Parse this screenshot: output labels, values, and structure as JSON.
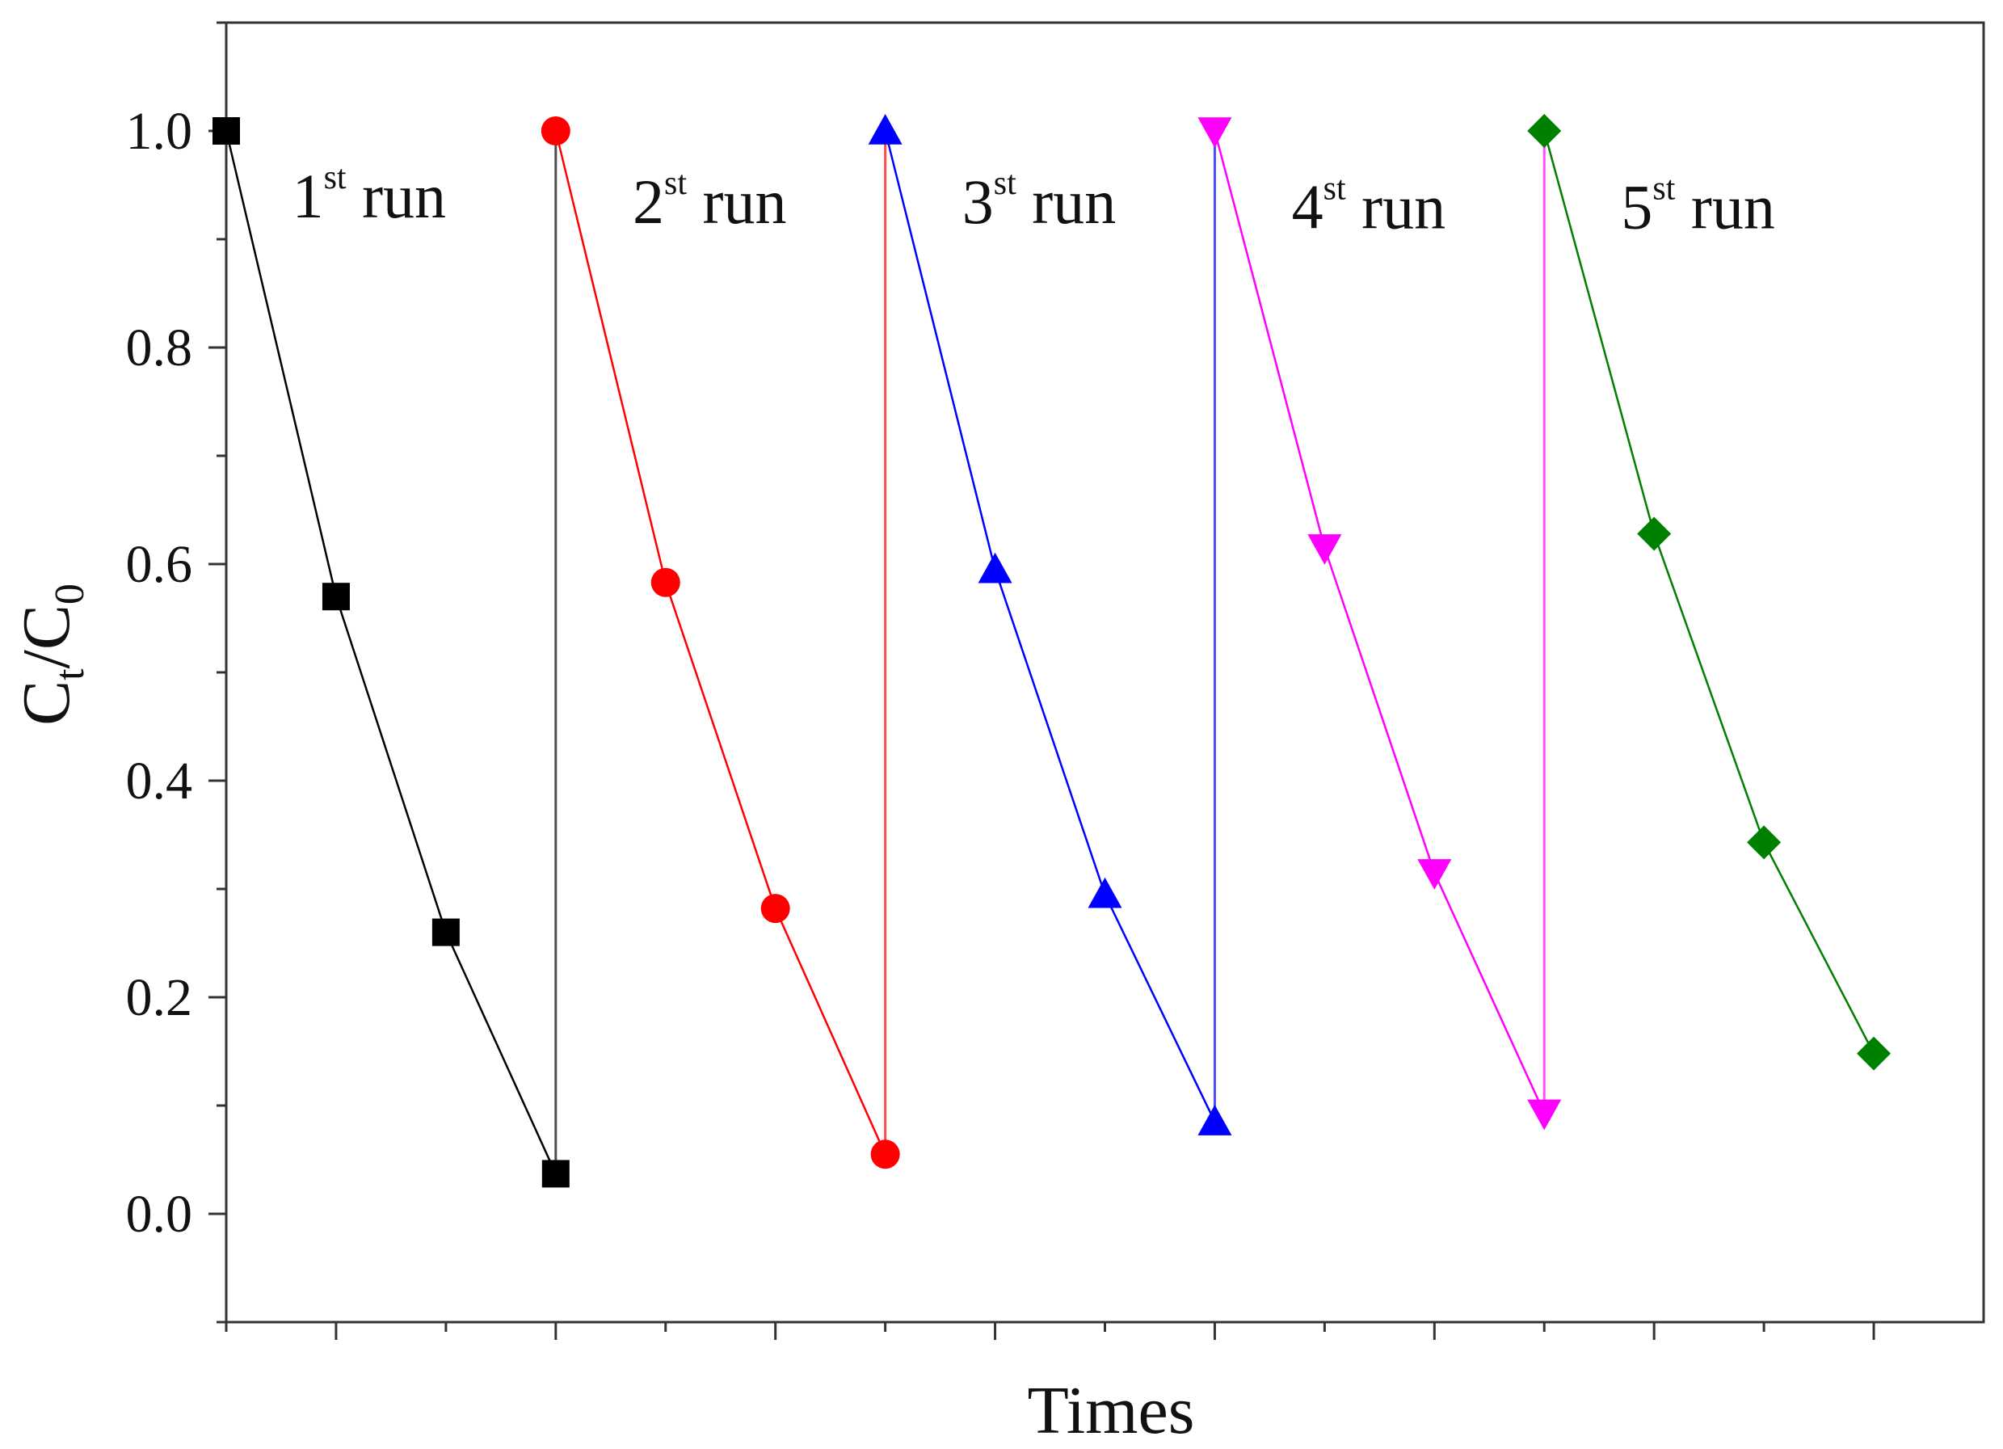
{
  "chart_data": {
    "type": "line",
    "xlabel": "Times",
    "ylabel": {
      "main": "C",
      "sub1": "t",
      "sep": "/C",
      "sub2": "0"
    },
    "ylim": [
      -0.1,
      1.1
    ],
    "yticks": [
      0.0,
      0.2,
      0.4,
      0.6,
      0.8,
      1.0
    ],
    "ytick_labels": [
      "0.0",
      "0.2",
      "0.4",
      "0.6",
      "0.8",
      "1.0"
    ],
    "xlim": [
      0,
      16
    ],
    "x_major_ticks": [
      0,
      1,
      2,
      3,
      4,
      5,
      6,
      7,
      8,
      9,
      10,
      11,
      12,
      13,
      14,
      15
    ],
    "grid": false,
    "series": [
      {
        "color": "#000000",
        "marker": "square",
        "points": [
          [
            0,
            1.0
          ],
          [
            1,
            0.57
          ],
          [
            2,
            0.26
          ],
          [
            3,
            0.037
          ]
        ]
      },
      {
        "color": "#ff0000",
        "marker": "circle",
        "points": [
          [
            3,
            1.0
          ],
          [
            4,
            0.583
          ],
          [
            5,
            0.282
          ],
          [
            6,
            0.055
          ]
        ]
      },
      {
        "color": "#0000ff",
        "marker": "triangle-up",
        "points": [
          [
            6,
            1.0
          ],
          [
            7,
            0.595
          ],
          [
            8,
            0.295
          ],
          [
            9,
            0.085
          ]
        ]
      },
      {
        "color": "#ff00ff",
        "marker": "triangle-down",
        "points": [
          [
            9,
            1.0
          ],
          [
            10,
            0.615
          ],
          [
            11,
            0.315
          ],
          [
            12,
            0.093
          ]
        ]
      },
      {
        "color": "#008000",
        "marker": "diamond",
        "points": [
          [
            12,
            1.0
          ],
          [
            13,
            0.628
          ],
          [
            14,
            0.343
          ],
          [
            15,
            0.148
          ]
        ]
      }
    ],
    "connectors": [
      {
        "color": "#000000",
        "from": [
          3,
          0.037
        ],
        "to": [
          3,
          1.0
        ]
      },
      {
        "color": "#ff0000",
        "from": [
          6,
          0.055
        ],
        "to": [
          6,
          1.0
        ]
      },
      {
        "color": "#0000ff",
        "from": [
          9,
          0.085
        ],
        "to": [
          9,
          1.0
        ]
      },
      {
        "color": "#ff00ff",
        "from": [
          12,
          0.093
        ],
        "to": [
          12,
          1.0
        ]
      }
    ],
    "annotations": [
      {
        "num": "1",
        "sup": "st",
        "text": " run",
        "x": 0.6,
        "y": 0.92
      },
      {
        "num": "2",
        "sup": "st",
        "text": " run",
        "x": 3.7,
        "y": 0.915
      },
      {
        "num": "3",
        "sup": "st",
        "text": " run",
        "x": 6.7,
        "y": 0.915
      },
      {
        "num": "4",
        "sup": "st",
        "text": " run",
        "x": 9.7,
        "y": 0.91
      },
      {
        "num": "5",
        "sup": "st",
        "text": " run",
        "x": 12.7,
        "y": 0.91
      }
    ]
  }
}
